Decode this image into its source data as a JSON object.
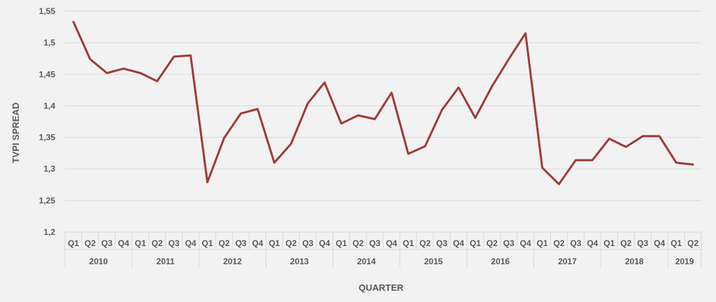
{
  "chart_data": {
    "type": "line",
    "title": "",
    "xlabel": "QUARTER",
    "ylabel": "TVPI SPREAD",
    "ylim": [
      1.2,
      1.55
    ],
    "y_ticks": [
      "1,2",
      "1,25",
      "1,3",
      "1,35",
      "1,4",
      "1,45",
      "1,5",
      "1,55"
    ],
    "y_tick_values": [
      1.2,
      1.25,
      1.3,
      1.35,
      1.4,
      1.45,
      1.5,
      1.55
    ],
    "grid": true,
    "line_color": "#9e3b38",
    "years": [
      {
        "label": "2010",
        "quarters": [
          "Q1",
          "Q2",
          "Q3",
          "Q4"
        ]
      },
      {
        "label": "2011",
        "quarters": [
          "Q1",
          "Q2",
          "Q3",
          "Q4"
        ]
      },
      {
        "label": "2012",
        "quarters": [
          "Q1",
          "Q2",
          "Q3",
          "Q4"
        ]
      },
      {
        "label": "2013",
        "quarters": [
          "Q1",
          "Q2",
          "Q3",
          "Q4"
        ]
      },
      {
        "label": "2014",
        "quarters": [
          "Q1",
          "Q2",
          "Q3",
          "Q4"
        ]
      },
      {
        "label": "2015",
        "quarters": [
          "Q1",
          "Q2",
          "Q3",
          "Q4"
        ]
      },
      {
        "label": "2016",
        "quarters": [
          "Q1",
          "Q2",
          "Q3",
          "Q4"
        ]
      },
      {
        "label": "2017",
        "quarters": [
          "Q1",
          "Q2",
          "Q3",
          "Q4"
        ]
      },
      {
        "label": "2018",
        "quarters": [
          "Q1",
          "Q2",
          "Q3",
          "Q4"
        ]
      },
      {
        "label": "2019",
        "quarters": [
          "Q1",
          "Q2"
        ]
      }
    ],
    "series": [
      {
        "values": [
          1.533,
          1.474,
          1.452,
          1.459,
          1.452,
          1.439,
          1.478,
          1.48,
          1.279,
          1.349,
          1.388,
          1.395,
          1.31,
          1.34,
          1.404,
          1.437,
          1.372,
          1.385,
          1.379,
          1.421,
          1.324,
          1.336,
          1.393,
          1.429,
          1.381,
          1.431,
          1.474,
          1.515,
          1.302,
          1.276,
          1.314,
          1.314,
          1.348,
          1.335,
          1.352,
          1.352,
          1.31,
          1.307
        ]
      }
    ]
  }
}
